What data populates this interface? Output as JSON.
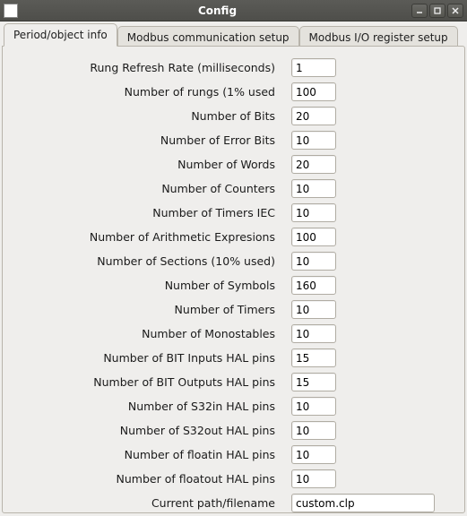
{
  "window": {
    "title": "Config"
  },
  "tabs": {
    "t0": "Period/object info",
    "t1": "Modbus communication setup",
    "t2": "Modbus  I/O register setup"
  },
  "rows": [
    {
      "label": "Rung Refresh Rate (milliseconds)",
      "value": "1"
    },
    {
      "label": "Number of rungs (1% used",
      "value": "100"
    },
    {
      "label": "Number of Bits",
      "value": "20"
    },
    {
      "label": "Number of Error Bits",
      "value": "10"
    },
    {
      "label": "Number of Words",
      "value": "20"
    },
    {
      "label": "Number of Counters",
      "value": "10"
    },
    {
      "label": "Number of Timers IEC",
      "value": "10"
    },
    {
      "label": "Number of Arithmetic Expresions",
      "value": "100"
    },
    {
      "label": "Number of Sections (10% used)",
      "value": "10"
    },
    {
      "label": "Number of Symbols",
      "value": "160"
    },
    {
      "label": "Number of Timers",
      "value": "10"
    },
    {
      "label": "Number of Monostables",
      "value": "10"
    },
    {
      "label": "Number of BIT Inputs HAL pins",
      "value": "15"
    },
    {
      "label": "Number of BIT Outputs HAL pins",
      "value": "15"
    },
    {
      "label": "Number of S32in HAL pins",
      "value": "10"
    },
    {
      "label": "Number of S32out HAL pins",
      "value": "10"
    },
    {
      "label": "Number of floatin HAL pins",
      "value": "10"
    },
    {
      "label": "Number of floatout HAL pins",
      "value": "10"
    },
    {
      "label": "Current path/filename",
      "value": "custom.clp",
      "wide": true
    }
  ],
  "colors": {
    "window_bg": "#efeeec",
    "titlebar_bg_top": "#5b5b57",
    "titlebar_bg_bottom": "#4e4e4a",
    "border": "#b8b4ab",
    "input_bg": "#ffffff",
    "text": "#1a1a1a"
  }
}
